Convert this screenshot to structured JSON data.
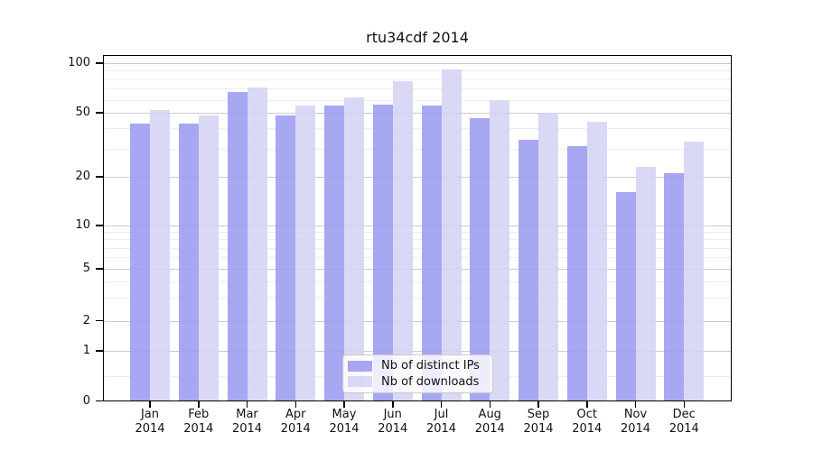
{
  "chart_data": {
    "type": "bar",
    "title": "rtu34cdf 2014",
    "categories": [
      "Jan",
      "Feb",
      "Mar",
      "Apr",
      "May",
      "Jun",
      "Jul",
      "Aug",
      "Sep",
      "Oct",
      "Nov",
      "Dec"
    ],
    "x_tick_year": "2014",
    "series": [
      {
        "name": "Nb of distinct IPs",
        "color": "#9898f0",
        "values": [
          43,
          43,
          67,
          48,
          55,
          56,
          55,
          46,
          34,
          31,
          16,
          21
        ]
      },
      {
        "name": "Nb of downloads",
        "color": "#d2d2f5",
        "values": [
          52,
          48,
          71,
          55,
          62,
          78,
          92,
          60,
          50,
          44,
          23,
          33
        ]
      }
    ],
    "y_axis": {
      "ticks": [
        100,
        50,
        20,
        10,
        5,
        2,
        1,
        0
      ],
      "scale": "log-like (linear below 1)",
      "minor_gridlines": [
        0.5,
        3,
        4,
        6,
        7,
        8,
        9,
        30,
        40,
        60,
        70,
        80,
        90
      ]
    },
    "ylim": [
      0,
      110
    ],
    "grid": true,
    "legend": {
      "position": "inside-bottom-center",
      "entries": [
        "Nb of distinct IPs",
        "Nb of downloads"
      ]
    }
  }
}
